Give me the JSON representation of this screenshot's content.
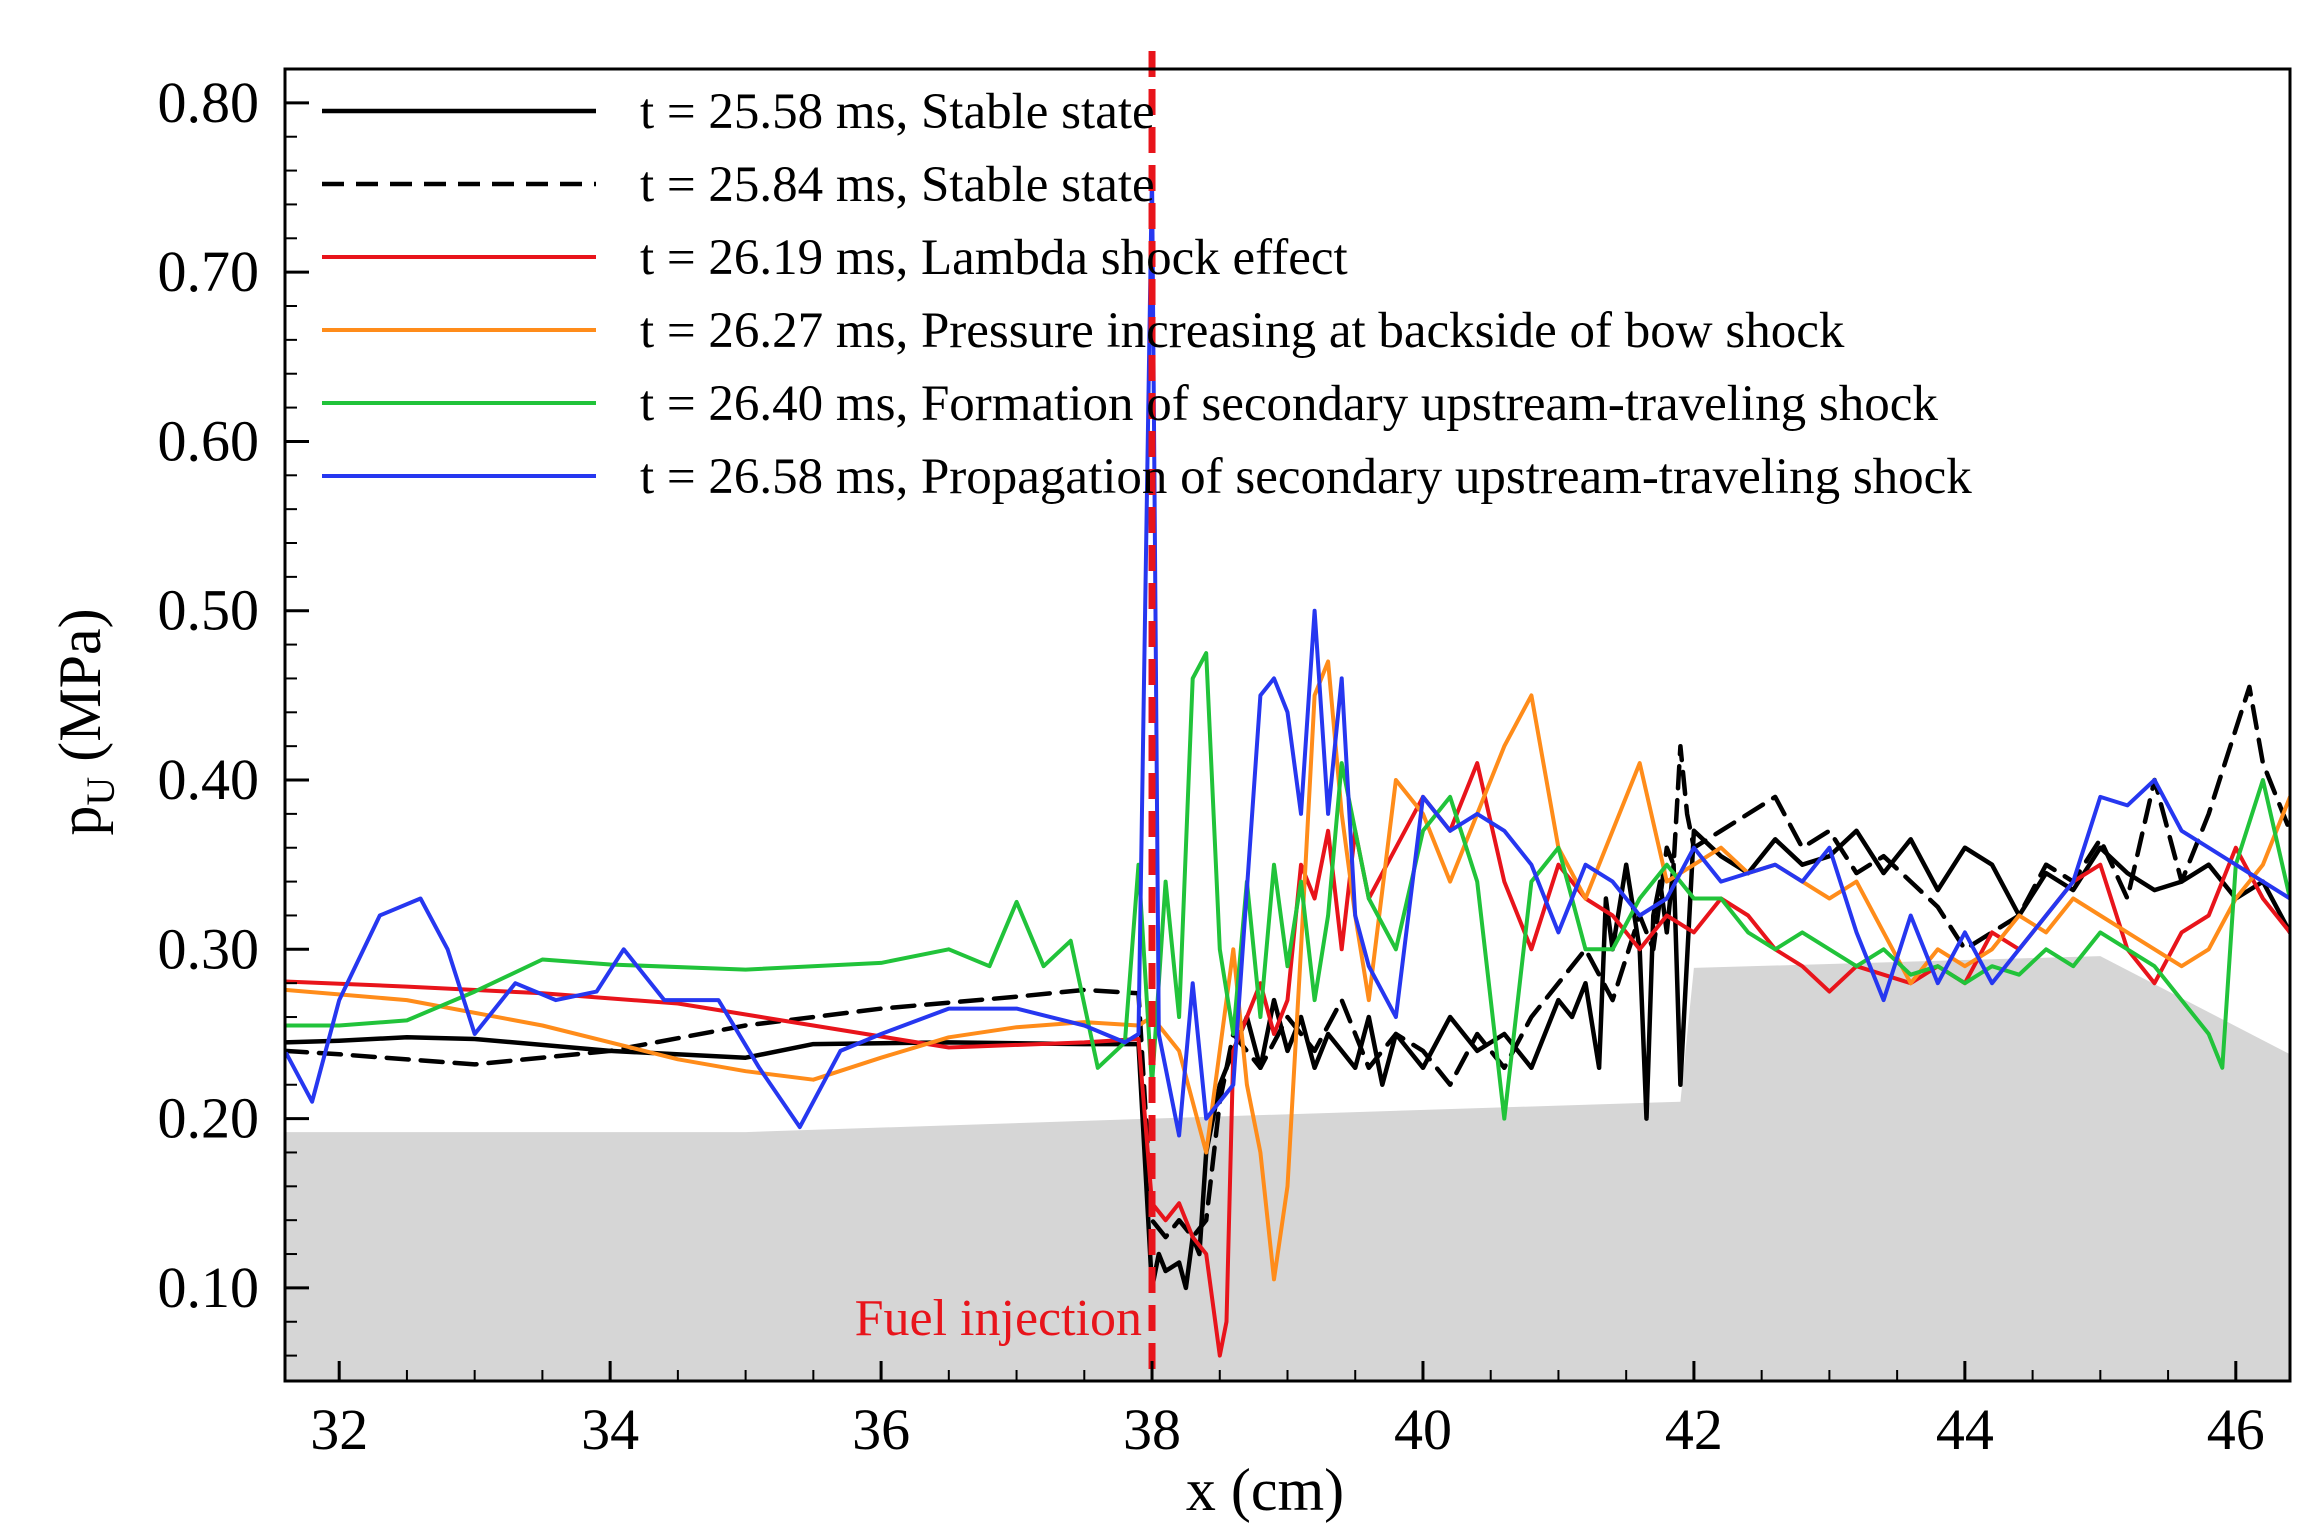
{
  "chart_data": {
    "type": "line",
    "title": "",
    "xlabel": "x (cm)",
    "ylabel": {
      "main": "p",
      "sub": "U",
      "unit": " (MPa)"
    },
    "xlim": [
      31.6,
      46.4
    ],
    "ylim": [
      0.045,
      0.82
    ],
    "xticks": [
      32,
      34,
      36,
      38,
      40,
      42,
      44,
      46
    ],
    "yticks": [
      0.1,
      0.2,
      0.3,
      0.4,
      0.5,
      0.6,
      0.7,
      0.8
    ],
    "ytick_labels": [
      "0.10",
      "0.20",
      "0.30",
      "0.40",
      "0.50",
      "0.60",
      "0.70",
      "0.80"
    ],
    "grid": false,
    "legend_position": "top-left",
    "annotation": {
      "text": "Fuel injection",
      "x": 38.0
    },
    "geometry_fill": {
      "color": "#d6d6d6",
      "x": [
        31.6,
        35.0,
        38.0,
        41.9,
        41.9,
        42.0,
        45.0,
        46.4,
        46.4,
        31.6
      ],
      "y": [
        0.192,
        0.192,
        0.2,
        0.21,
        0.21,
        0.289,
        0.296,
        0.238,
        0.045,
        0.045
      ]
    },
    "series": [
      {
        "name": "t = 25.58 ms, Stable state",
        "color": "#000000",
        "dash": "solid",
        "width": 4.5,
        "x": [
          31.6,
          32.0,
          32.5,
          33.0,
          34.0,
          35.0,
          35.5,
          36.5,
          37.5,
          37.9,
          38.0,
          38.05,
          38.1,
          38.2,
          38.25,
          38.3,
          38.35,
          38.4,
          38.45,
          38.5,
          38.6,
          38.7,
          38.8,
          38.9,
          39.0,
          39.1,
          39.2,
          39.3,
          39.4,
          39.5,
          39.6,
          39.7,
          39.8,
          39.9,
          40.0,
          40.2,
          40.4,
          40.6,
          40.8,
          41.0,
          41.1,
          41.2,
          41.3,
          41.35,
          41.4,
          41.5,
          41.6,
          41.65,
          41.7,
          41.75,
          41.8,
          41.85,
          41.9,
          42.0,
          42.2,
          42.4,
          42.6,
          42.8,
          43.0,
          43.2,
          43.4,
          43.6,
          43.8,
          44.0,
          44.2,
          44.4,
          44.6,
          44.8,
          45.0,
          45.2,
          45.4,
          45.6,
          45.8,
          46.0,
          46.2,
          46.4
        ],
        "y": [
          0.245,
          0.246,
          0.248,
          0.247,
          0.24,
          0.236,
          0.244,
          0.245,
          0.244,
          0.244,
          0.1,
          0.12,
          0.11,
          0.115,
          0.1,
          0.13,
          0.12,
          0.18,
          0.2,
          0.22,
          0.24,
          0.26,
          0.23,
          0.27,
          0.24,
          0.26,
          0.23,
          0.25,
          0.24,
          0.23,
          0.26,
          0.22,
          0.25,
          0.24,
          0.23,
          0.26,
          0.24,
          0.25,
          0.23,
          0.27,
          0.26,
          0.28,
          0.23,
          0.33,
          0.3,
          0.35,
          0.3,
          0.2,
          0.32,
          0.34,
          0.31,
          0.35,
          0.22,
          0.37,
          0.355,
          0.345,
          0.365,
          0.35,
          0.355,
          0.37,
          0.345,
          0.365,
          0.335,
          0.36,
          0.35,
          0.32,
          0.345,
          0.335,
          0.36,
          0.345,
          0.335,
          0.34,
          0.35,
          0.33,
          0.34,
          0.31
        ]
      },
      {
        "name": "t = 25.84 ms, Stable state",
        "color": "#000000",
        "dash": "dashed",
        "width": 4.5,
        "x": [
          31.6,
          32.0,
          33.0,
          34.0,
          35.0,
          36.0,
          37.0,
          37.5,
          37.9,
          38.0,
          38.1,
          38.2,
          38.3,
          38.4,
          38.5,
          38.6,
          38.8,
          39.0,
          39.2,
          39.4,
          39.6,
          39.8,
          40.0,
          40.2,
          40.4,
          40.6,
          40.8,
          41.0,
          41.2,
          41.4,
          41.6,
          41.7,
          41.8,
          41.85,
          41.9,
          41.95,
          42.0,
          42.2,
          42.4,
          42.6,
          42.8,
          43.0,
          43.2,
          43.4,
          43.6,
          43.8,
          44.0,
          44.2,
          44.4,
          44.6,
          44.8,
          45.0,
          45.2,
          45.4,
          45.6,
          45.8,
          46.0,
          46.1,
          46.2,
          46.4
        ],
        "y": [
          0.24,
          0.238,
          0.232,
          0.24,
          0.255,
          0.265,
          0.272,
          0.276,
          0.274,
          0.14,
          0.13,
          0.14,
          0.13,
          0.14,
          0.21,
          0.25,
          0.23,
          0.26,
          0.24,
          0.27,
          0.23,
          0.25,
          0.24,
          0.22,
          0.25,
          0.23,
          0.26,
          0.28,
          0.3,
          0.27,
          0.32,
          0.3,
          0.36,
          0.35,
          0.42,
          0.38,
          0.36,
          0.37,
          0.38,
          0.39,
          0.36,
          0.37,
          0.345,
          0.355,
          0.34,
          0.325,
          0.3,
          0.31,
          0.32,
          0.35,
          0.34,
          0.365,
          0.33,
          0.4,
          0.34,
          0.38,
          0.43,
          0.455,
          0.41,
          0.37
        ]
      },
      {
        "name": "t = 26.19 ms, Lambda shock effect",
        "color": "#e8141b",
        "dash": "solid",
        "width": 4,
        "x": [
          31.6,
          32.5,
          33.5,
          34.5,
          35.5,
          36.5,
          37.5,
          37.9,
          38.0,
          38.1,
          38.2,
          38.3,
          38.4,
          38.5,
          38.55,
          38.6,
          38.7,
          38.8,
          38.9,
          39.0,
          39.1,
          39.2,
          39.3,
          39.4,
          39.5,
          39.6,
          39.8,
          40.0,
          40.2,
          40.4,
          40.6,
          40.8,
          41.0,
          41.2,
          41.4,
          41.6,
          41.8,
          42.0,
          42.2,
          42.4,
          42.6,
          42.8,
          43.0,
          43.2,
          43.4,
          43.6,
          43.8,
          44.0,
          44.2,
          44.4,
          44.6,
          44.8,
          45.0,
          45.2,
          45.4,
          45.6,
          45.8,
          46.0,
          46.2,
          46.4
        ],
        "y": [
          0.281,
          0.278,
          0.274,
          0.268,
          0.255,
          0.242,
          0.245,
          0.247,
          0.15,
          0.14,
          0.15,
          0.13,
          0.12,
          0.06,
          0.08,
          0.24,
          0.26,
          0.28,
          0.25,
          0.27,
          0.35,
          0.33,
          0.37,
          0.3,
          0.37,
          0.33,
          0.36,
          0.39,
          0.37,
          0.41,
          0.34,
          0.3,
          0.35,
          0.33,
          0.32,
          0.3,
          0.32,
          0.31,
          0.33,
          0.32,
          0.3,
          0.29,
          0.275,
          0.29,
          0.285,
          0.28,
          0.29,
          0.28,
          0.31,
          0.3,
          0.32,
          0.34,
          0.35,
          0.3,
          0.28,
          0.31,
          0.32,
          0.36,
          0.33,
          0.31
        ]
      },
      {
        "name": "t = 26.27 ms, Pressure increasing at backside of bow shock",
        "color": "#ff8c1a",
        "dash": "solid",
        "width": 4,
        "x": [
          31.6,
          32.5,
          33.5,
          34.5,
          35.0,
          35.5,
          36.0,
          36.5,
          37.0,
          37.5,
          37.9,
          38.0,
          38.2,
          38.4,
          38.6,
          38.7,
          38.8,
          38.9,
          39.0,
          39.1,
          39.2,
          39.3,
          39.4,
          39.5,
          39.6,
          39.8,
          40.0,
          40.2,
          40.4,
          40.6,
          40.8,
          41.0,
          41.2,
          41.4,
          41.6,
          41.8,
          42.0,
          42.2,
          42.4,
          42.6,
          42.8,
          43.0,
          43.2,
          43.4,
          43.6,
          43.8,
          44.0,
          44.2,
          44.4,
          44.6,
          44.8,
          45.0,
          45.2,
          45.4,
          45.6,
          45.8,
          46.0,
          46.2,
          46.4
        ],
        "y": [
          0.276,
          0.27,
          0.255,
          0.235,
          0.228,
          0.223,
          0.236,
          0.248,
          0.254,
          0.257,
          0.255,
          0.26,
          0.24,
          0.18,
          0.3,
          0.22,
          0.18,
          0.105,
          0.16,
          0.3,
          0.45,
          0.47,
          0.38,
          0.32,
          0.27,
          0.4,
          0.38,
          0.34,
          0.38,
          0.42,
          0.45,
          0.36,
          0.33,
          0.37,
          0.41,
          0.34,
          0.35,
          0.36,
          0.345,
          0.35,
          0.34,
          0.33,
          0.34,
          0.31,
          0.28,
          0.3,
          0.29,
          0.3,
          0.32,
          0.31,
          0.33,
          0.32,
          0.31,
          0.3,
          0.29,
          0.3,
          0.33,
          0.35,
          0.39
        ]
      },
      {
        "name": "t = 26.40 ms, Formation of secondary upstream-traveling shock",
        "color": "#21c33a",
        "dash": "solid",
        "width": 4,
        "x": [
          31.6,
          32.0,
          32.5,
          33.0,
          33.5,
          34.0,
          35.0,
          36.0,
          36.5,
          36.8,
          37.0,
          37.2,
          37.4,
          37.6,
          37.8,
          37.9,
          38.0,
          38.1,
          38.2,
          38.3,
          38.4,
          38.5,
          38.6,
          38.7,
          38.8,
          38.9,
          39.0,
          39.1,
          39.2,
          39.3,
          39.4,
          39.6,
          39.8,
          40.0,
          40.2,
          40.4,
          40.6,
          40.8,
          41.0,
          41.2,
          41.4,
          41.6,
          41.8,
          42.0,
          42.2,
          42.4,
          42.6,
          42.8,
          43.0,
          43.2,
          43.4,
          43.6,
          43.8,
          44.0,
          44.2,
          44.4,
          44.6,
          44.8,
          45.0,
          45.2,
          45.4,
          45.6,
          45.8,
          45.9,
          46.0,
          46.2,
          46.4
        ],
        "y": [
          0.255,
          0.255,
          0.258,
          0.275,
          0.294,
          0.291,
          0.288,
          0.292,
          0.3,
          0.29,
          0.328,
          0.29,
          0.305,
          0.23,
          0.245,
          0.35,
          0.22,
          0.34,
          0.26,
          0.46,
          0.475,
          0.3,
          0.25,
          0.34,
          0.26,
          0.35,
          0.29,
          0.34,
          0.27,
          0.32,
          0.41,
          0.33,
          0.3,
          0.37,
          0.39,
          0.34,
          0.2,
          0.34,
          0.36,
          0.3,
          0.3,
          0.33,
          0.35,
          0.33,
          0.33,
          0.31,
          0.3,
          0.31,
          0.3,
          0.29,
          0.3,
          0.285,
          0.29,
          0.28,
          0.29,
          0.285,
          0.3,
          0.29,
          0.31,
          0.3,
          0.29,
          0.27,
          0.25,
          0.23,
          0.35,
          0.4,
          0.33
        ]
      },
      {
        "name": "t = 26.58 ms, Propagation of secondary upstream-traveling shock",
        "color": "#2637f0",
        "dash": "solid",
        "width": 4,
        "x": [
          31.6,
          31.8,
          32.0,
          32.3,
          32.6,
          32.8,
          33.0,
          33.3,
          33.6,
          33.9,
          34.1,
          34.4,
          34.8,
          35.1,
          35.4,
          35.7,
          36.0,
          36.5,
          37.0,
          37.5,
          37.8,
          37.9,
          38.0,
          38.05,
          38.1,
          38.2,
          38.3,
          38.4,
          38.6,
          38.8,
          38.9,
          39.0,
          39.1,
          39.2,
          39.3,
          39.4,
          39.5,
          39.6,
          39.8,
          40.0,
          40.2,
          40.4,
          40.6,
          40.8,
          41.0,
          41.2,
          41.4,
          41.6,
          41.8,
          42.0,
          42.2,
          42.4,
          42.6,
          42.8,
          43.0,
          43.2,
          43.4,
          43.6,
          43.8,
          44.0,
          44.2,
          44.4,
          44.6,
          44.8,
          45.0,
          45.2,
          45.4,
          45.6,
          45.8,
          46.0,
          46.2,
          46.4
        ],
        "y": [
          0.24,
          0.21,
          0.27,
          0.32,
          0.33,
          0.3,
          0.25,
          0.28,
          0.27,
          0.275,
          0.3,
          0.27,
          0.27,
          0.23,
          0.195,
          0.24,
          0.25,
          0.265,
          0.265,
          0.255,
          0.245,
          0.25,
          0.76,
          0.25,
          0.23,
          0.19,
          0.28,
          0.2,
          0.22,
          0.45,
          0.46,
          0.44,
          0.38,
          0.5,
          0.38,
          0.46,
          0.32,
          0.29,
          0.26,
          0.39,
          0.37,
          0.38,
          0.37,
          0.35,
          0.31,
          0.35,
          0.34,
          0.32,
          0.33,
          0.36,
          0.34,
          0.345,
          0.35,
          0.34,
          0.36,
          0.31,
          0.27,
          0.32,
          0.28,
          0.31,
          0.28,
          0.3,
          0.32,
          0.34,
          0.39,
          0.385,
          0.4,
          0.37,
          0.36,
          0.35,
          0.34,
          0.33
        ]
      }
    ]
  }
}
